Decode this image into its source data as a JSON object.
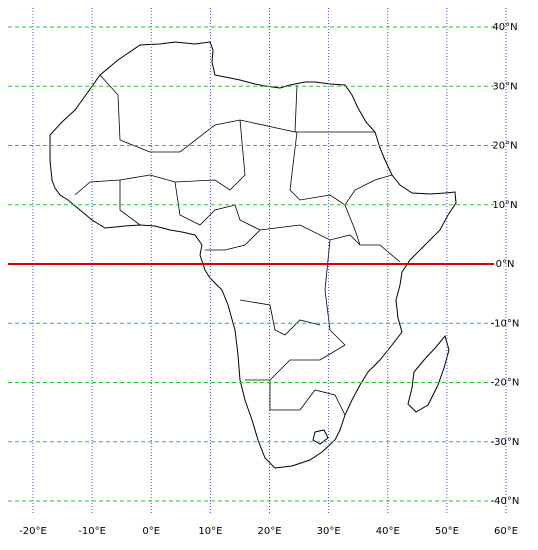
{
  "map": {
    "lonlim": [
      -20,
      60
    ],
    "latlim": [
      -40,
      40
    ],
    "lon_ticks": [
      {
        "value": -20,
        "label": "-20°E"
      },
      {
        "value": -10,
        "label": "-10°E"
      },
      {
        "value": 0,
        "label": "0°E"
      },
      {
        "value": 10,
        "label": "10°E"
      },
      {
        "value": 20,
        "label": "20°E"
      },
      {
        "value": 30,
        "label": "30°E"
      },
      {
        "value": 40,
        "label": "40°E"
      },
      {
        "value": 50,
        "label": "50°E"
      },
      {
        "value": 60,
        "label": "60°E"
      }
    ],
    "lat_ticks": [
      {
        "value": 40,
        "label": "40°N"
      },
      {
        "value": 30,
        "label": "30°N"
      },
      {
        "value": 20,
        "label": "20°N"
      },
      {
        "value": 10,
        "label": "10°N"
      },
      {
        "value": 0,
        "label": "0°N"
      },
      {
        "value": -10,
        "label": "-10°N"
      },
      {
        "value": -20,
        "label": "-20°N"
      },
      {
        "value": -30,
        "label": "-30°N"
      },
      {
        "value": -40,
        "label": "-40°N"
      }
    ],
    "lat_grid_color": "#22cc22",
    "lon_grid_color": "#4444dd",
    "equator_color": "#dd0000"
  }
}
